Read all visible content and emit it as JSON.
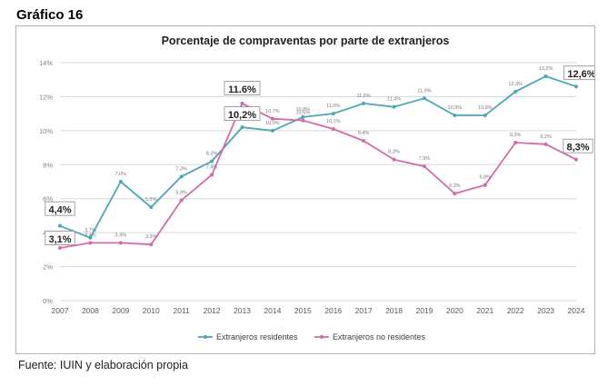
{
  "heading": "Gráfico 16",
  "source": "Fuente: IUIN y elaboración propia",
  "colors": {
    "residentes": "#4aa8b4",
    "no_residentes": "#d66aa8",
    "grid": "#d9d9d9",
    "text": "#7f7f7f"
  },
  "chart_data": {
    "type": "line",
    "title": "Porcentaje de compraventas por parte de extranjeros",
    "xlabel": "",
    "ylabel": "",
    "categories": [
      "2007",
      "2008",
      "2009",
      "2010",
      "2011",
      "2012",
      "2013",
      "2014",
      "2015",
      "2016",
      "2017",
      "2018",
      "2019",
      "2020",
      "2021",
      "2022",
      "2023",
      "2024"
    ],
    "y_ticks": [
      "0%",
      "2%",
      "4%",
      "6%",
      "8%",
      "10%",
      "12%",
      "14%"
    ],
    "ylim": [
      0,
      14
    ],
    "grid": true,
    "legend_position": "bottom",
    "series": [
      {
        "name": "Extranjeros residentes",
        "color": "#4aa8b4",
        "values": [
          4.4,
          3.7,
          7.0,
          5.5,
          7.3,
          8.2,
          10.2,
          10.0,
          10.8,
          11.0,
          11.6,
          11.4,
          11.9,
          10.9,
          10.9,
          12.3,
          13.2,
          12.6
        ],
        "labels": [
          "4,4%",
          "3,7%",
          "7,0%",
          "5,5%",
          "7,3%",
          "8,2%",
          "10,2%",
          "10,0%",
          "10,8%",
          "11,0%",
          "11,6%",
          "11,4%",
          "11,9%",
          "10,9%",
          "10,9%",
          "12,3%",
          "13,2%",
          "12,6%"
        ]
      },
      {
        "name": "Extranjeros no residentes",
        "color": "#d66aa8",
        "values": [
          3.1,
          3.4,
          3.4,
          3.3,
          5.9,
          7.4,
          11.6,
          10.7,
          10.6,
          10.1,
          9.4,
          8.3,
          7.9,
          6.3,
          6.8,
          9.3,
          9.2,
          8.3
        ],
        "labels": [
          "3,1%",
          "3,4%",
          "3,4%",
          "3,3%",
          "5,9%",
          "7,4%",
          "11,6%",
          "10,7%",
          "10,6%",
          "10,1%",
          "9,4%",
          "8,3%",
          "7,9%",
          "6,3%",
          "6,8%",
          "9,3%",
          "9,2%",
          "8,3%"
        ]
      }
    ],
    "highlighted_labels": [
      {
        "series": 0,
        "index": 0,
        "text": "4,4%"
      },
      {
        "series": 1,
        "index": 0,
        "text": "3,1%"
      },
      {
        "series": 1,
        "index": 6,
        "text": "11.6%"
      },
      {
        "series": 0,
        "index": 6,
        "text": "10,2%"
      },
      {
        "series": 0,
        "index": 17,
        "text": "12,6%"
      },
      {
        "series": 1,
        "index": 17,
        "text": "8,3%"
      }
    ]
  }
}
